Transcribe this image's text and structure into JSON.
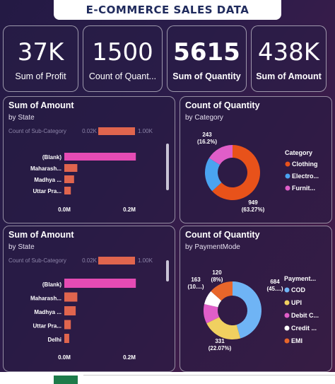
{
  "title": "E-COMMERCE  SALES  DATA",
  "kpis": [
    {
      "value": "37K",
      "label": "Sum of Profit"
    },
    {
      "value": "1500",
      "label": "Count of Quant..."
    },
    {
      "value": "5615",
      "label": "Sum of Quantity"
    },
    {
      "value": "438K",
      "label": "Sum of Amount"
    }
  ],
  "charts": {
    "amount_state_1": {
      "title": "Sum of Amount",
      "subtitle": "by State",
      "legend_title": "Count of Sub-Category",
      "legend_min": "0.02K",
      "legend_max": "1.00K",
      "x_ticks": [
        "0.0M",
        "0.2M"
      ],
      "categories": [
        "(Blank)",
        "Maharash...",
        "Madhya ...",
        "Uttar Pra..."
      ],
      "values": [
        0.22,
        0.04,
        0.03,
        0.02
      ]
    },
    "quantity_category": {
      "title": "Count of Quantity",
      "subtitle": "by Category",
      "legend_title": "Category",
      "items": [
        {
          "name": "Clothing",
          "value": 949,
          "label": "949",
          "pct": "(63.27%)",
          "color": "#e8521a"
        },
        {
          "name": "Electro...",
          "value": 308,
          "color": "#4aa3f0"
        },
        {
          "name": "Furnit...",
          "value": 243,
          "label": "243",
          "pct": "(16.2%)",
          "color": "#e05ec9"
        }
      ]
    },
    "amount_state_2": {
      "title": "Sum of Amount",
      "subtitle": "by State",
      "legend_title": "Count of Sub-Category",
      "legend_min": "0.02K",
      "legend_max": "1.00K",
      "x_ticks": [
        "0.0M",
        "0.2M"
      ],
      "categories": [
        "(Blank)",
        "Maharash...",
        "Madhya ...",
        "Uttar Pra...",
        "Delhi"
      ],
      "values": [
        0.22,
        0.04,
        0.035,
        0.02,
        0.015
      ]
    },
    "quantity_payment": {
      "title": "Count of Quantity",
      "subtitle": "by PaymentMode",
      "legend_title": "Payment...",
      "items": [
        {
          "name": "COD",
          "value": 684,
          "label": "684",
          "pct": "(45....)",
          "color": "#6fb4f5"
        },
        {
          "name": "UPI",
          "value": 331,
          "label": "331",
          "pct": "(22.07%)",
          "color": "#f0d060"
        },
        {
          "name": "Debit C...",
          "value": 163,
          "label": "163",
          "pct": "(10....)",
          "color": "#e05ec9"
        },
        {
          "name": "Credit ...",
          "value": 120,
          "label": "120",
          "pct": "(8%)",
          "color": "#ffffff"
        },
        {
          "name": "EMI",
          "value": 202,
          "color": "#e8662a"
        }
      ]
    }
  }
}
